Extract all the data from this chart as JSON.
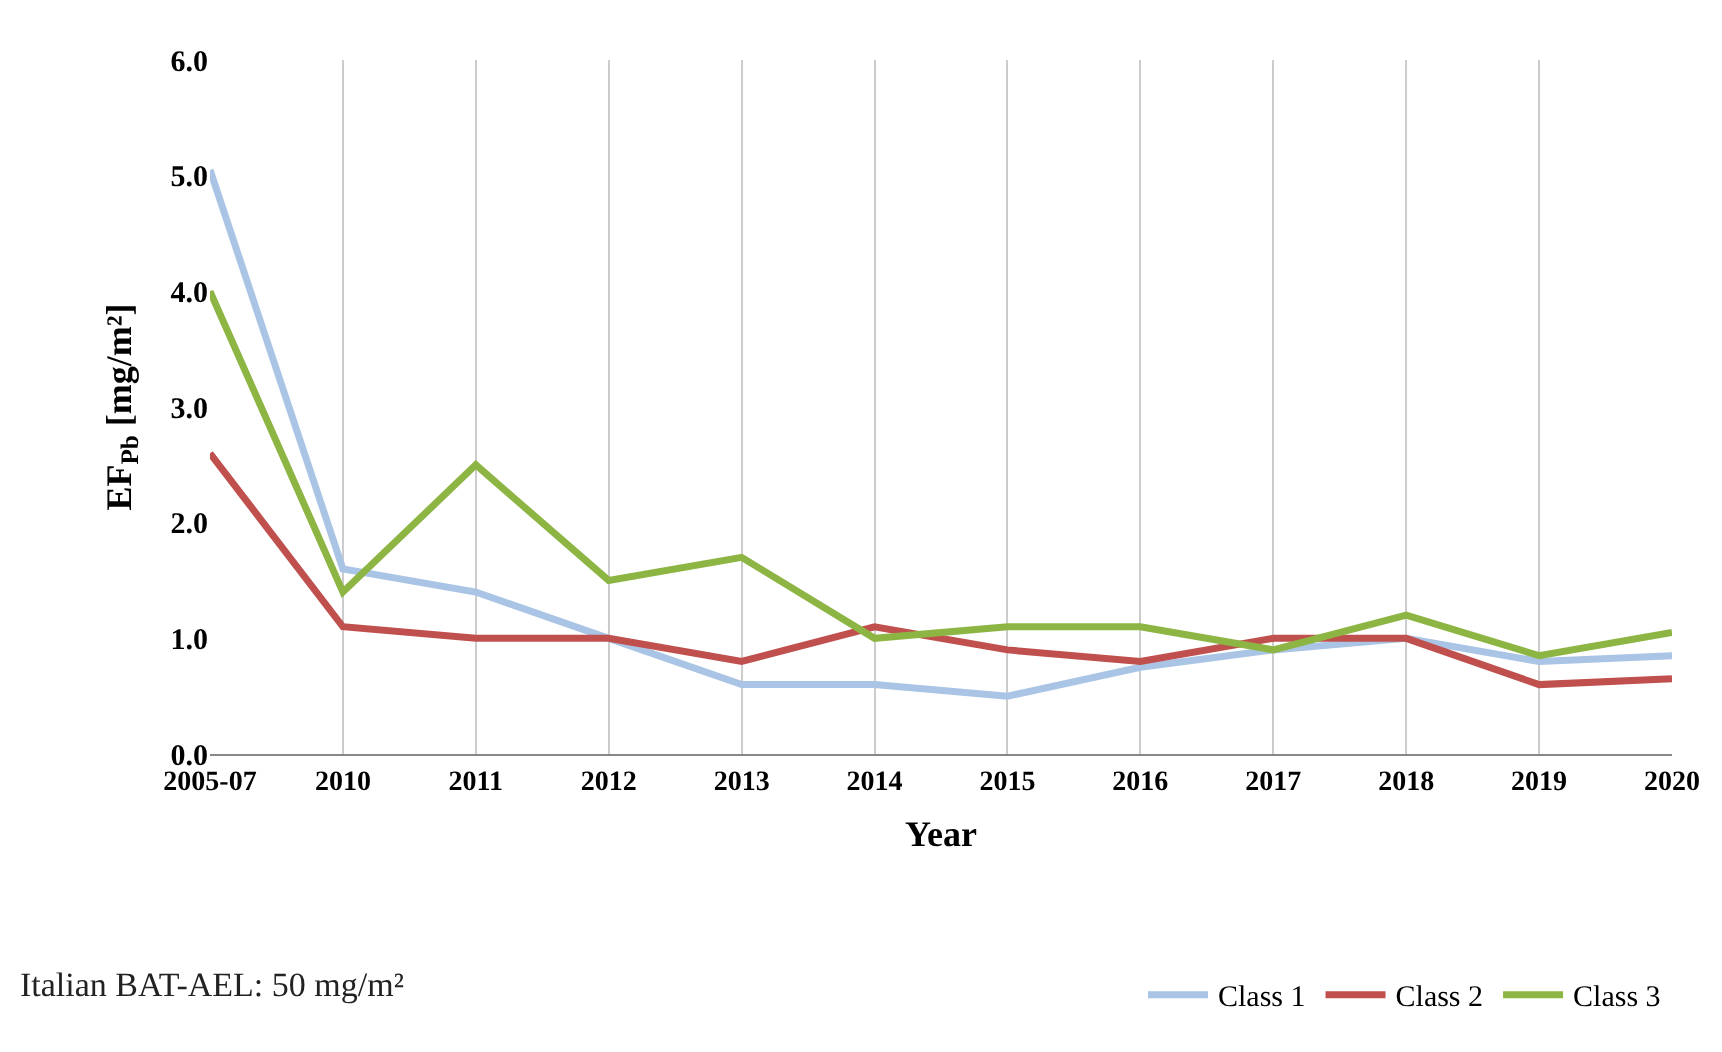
{
  "chart_data": {
    "type": "line",
    "xlabel": "Year",
    "ylabel": "EF$_{Pb}$ [mg/m²]",
    "categories": [
      "2005-07",
      "2010",
      "2011",
      "2012",
      "2013",
      "2014",
      "2015",
      "2016",
      "2017",
      "2018",
      "2019",
      "2020"
    ],
    "series": [
      {
        "name": "Class 1",
        "color": "#a9c4e4",
        "values": [
          5.05,
          1.6,
          1.4,
          1.0,
          0.6,
          0.6,
          0.5,
          0.75,
          0.9,
          1.0,
          0.8,
          0.85
        ]
      },
      {
        "name": "Class 2",
        "color": "#c0504d",
        "values": [
          2.6,
          1.1,
          1.0,
          1.0,
          0.8,
          1.1,
          0.9,
          0.8,
          1.0,
          1.0,
          0.6,
          0.65
        ]
      },
      {
        "name": "Class 3",
        "color": "#8db543",
        "values": [
          4.0,
          1.4,
          2.5,
          1.5,
          1.7,
          1.0,
          1.1,
          1.1,
          0.9,
          1.2,
          0.85,
          1.05
        ]
      }
    ],
    "ylim": [
      0,
      6
    ],
    "yticks": [
      {
        "value": 0,
        "label": "0.0"
      },
      {
        "value": 1,
        "label": "1.0"
      },
      {
        "value": 2,
        "label": "2.0"
      },
      {
        "value": 3,
        "label": "3.0"
      },
      {
        "value": 4,
        "label": "4.0"
      },
      {
        "value": 5,
        "label": "5.0"
      },
      {
        "value": 6,
        "label": "6.0"
      }
    ],
    "grid": "x",
    "legend": "bottom right",
    "marker": "none",
    "line_style": "solid",
    "annotations": [
      "Italian BAT-AEL: 50 mg/m²"
    ]
  }
}
